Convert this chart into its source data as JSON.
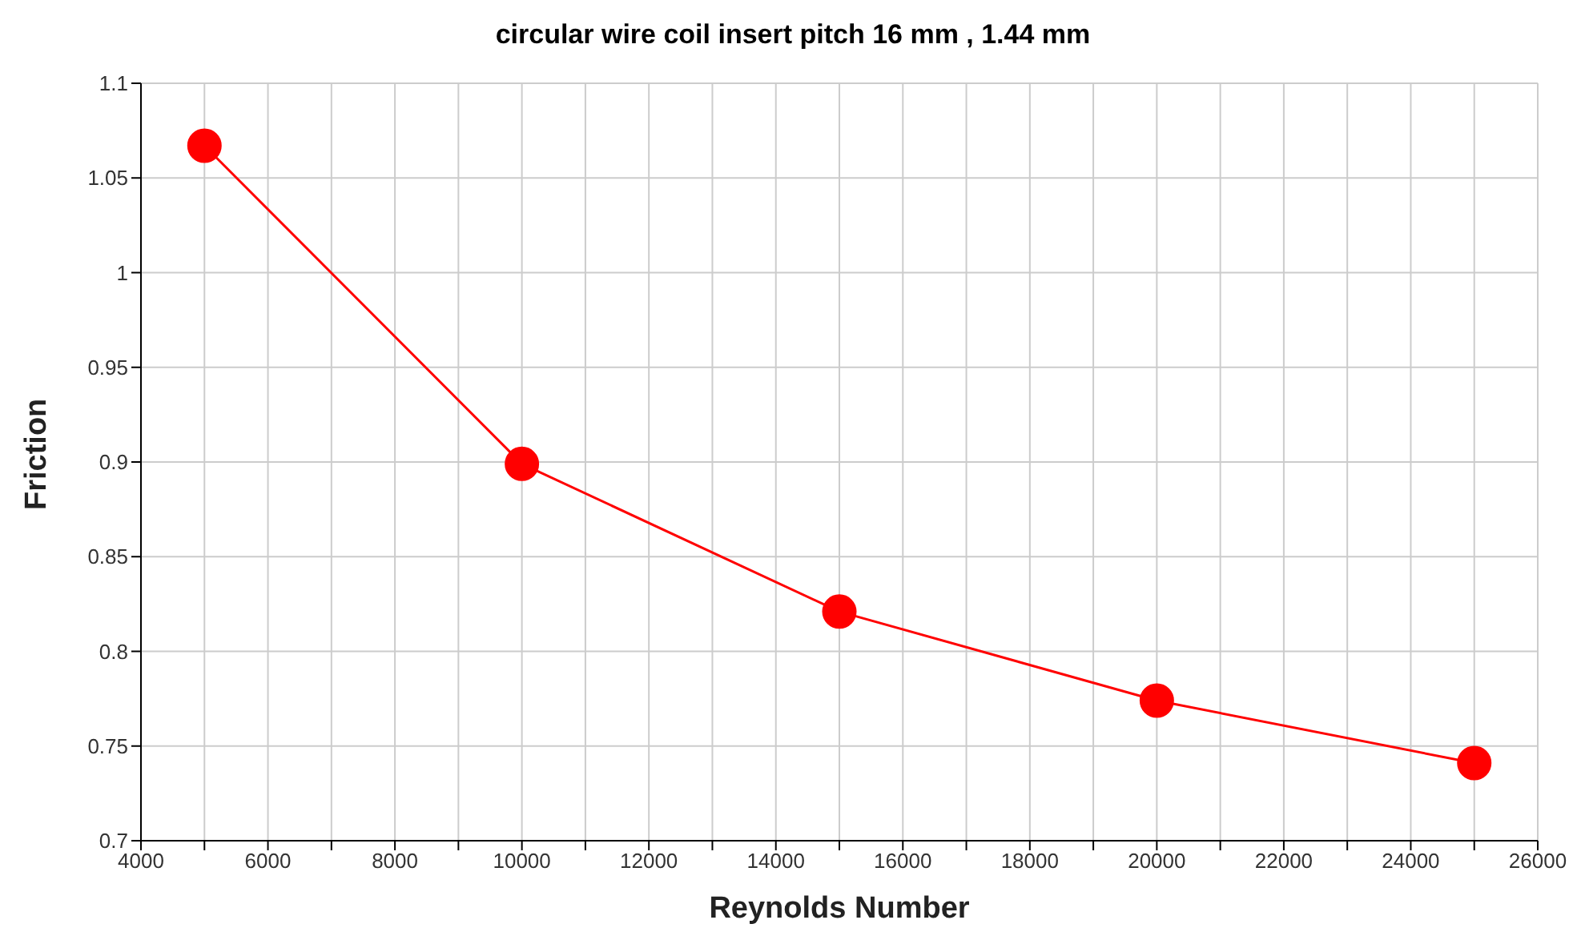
{
  "chart_data": {
    "type": "line",
    "title": "circular wire coil insert pitch 16 mm , 1.44 mm",
    "xlabel": "Reynolds Number",
    "ylabel": "Friction",
    "x": [
      5000,
      10000,
      15000,
      20000,
      25000
    ],
    "series": [
      {
        "color": "#ff0000",
        "values": [
          1.067,
          0.899,
          0.821,
          0.774,
          0.741
        ]
      }
    ],
    "xlim": [
      4000,
      26000
    ],
    "xticks": [
      4000,
      {
        "value": 5000,
        "label": null
      },
      6000,
      {
        "value": 7000,
        "label": null
      },
      8000,
      {
        "value": 9000,
        "label": null
      },
      10000,
      {
        "value": 11000,
        "label": null
      },
      12000,
      {
        "value": 13000,
        "label": null
      },
      14000,
      {
        "value": 15000,
        "label": null
      },
      16000,
      {
        "value": 17000,
        "label": null
      },
      18000,
      {
        "value": 19000,
        "label": null
      },
      20000,
      {
        "value": 21000,
        "label": null
      },
      22000,
      {
        "value": 23000,
        "label": null
      },
      24000,
      {
        "value": 25000,
        "label": null
      },
      26000
    ],
    "ylim": [
      0.7,
      1.1
    ],
    "yticks": [
      0.7,
      0.75,
      0.8,
      0.85,
      0.9,
      0.95,
      1,
      1.05,
      1.1
    ],
    "grid": true,
    "marker": "circle",
    "line_style": "solid"
  }
}
